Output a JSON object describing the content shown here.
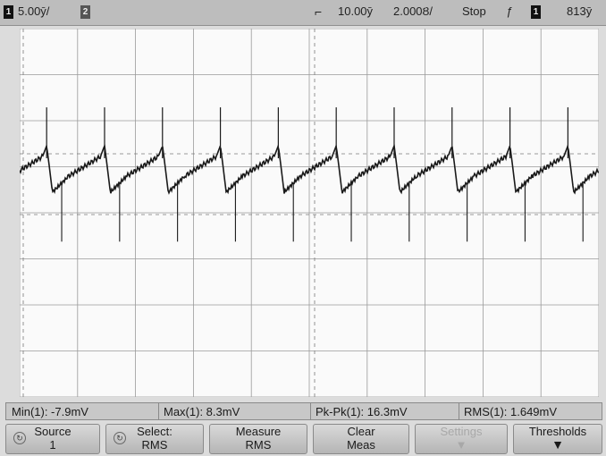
{
  "status": {
    "ch1_number": "1",
    "ch1_scale": "5.00ȳ/",
    "ch2_number": "2",
    "trigger_delay": "10.00ȳ",
    "timebase": "2.000Ȣ/",
    "run_state": "Stop",
    "trigger_edge_symbol": "ƒ",
    "trigger_source": "1",
    "trigger_level": "813ȳ"
  },
  "measurements": {
    "min": "Min(1): -7.9mV",
    "max": "Max(1): 8.3mV",
    "pkpk": "Pk-Pk(1): 16.3mV",
    "rms": "RMS(1): 1.649mV"
  },
  "softkeys": {
    "source": {
      "line1": "Source",
      "line2": "1"
    },
    "select": {
      "line1": "Select:",
      "line2": "RMS"
    },
    "measure": {
      "line1": "Measure",
      "line2": "RMS"
    },
    "clear": {
      "line1": "Clear",
      "line2": "Meas"
    },
    "settings": {
      "line1": "Settings",
      "line2": ""
    },
    "thresholds": {
      "line1": "Thresholds",
      "line2": ""
    }
  },
  "trace": {
    "color": "#1a1a1a",
    "period_divisions": 1.0,
    "baseline_offset_divisions": 0.0,
    "spike_peak_mv": 8.3,
    "spike_trough_mv": -7.9,
    "volts_per_division_mv": 5.0
  },
  "colors": {
    "screen": "#fafafa",
    "grid": "#9a9a9a",
    "topbar": "#bdbdbd"
  }
}
